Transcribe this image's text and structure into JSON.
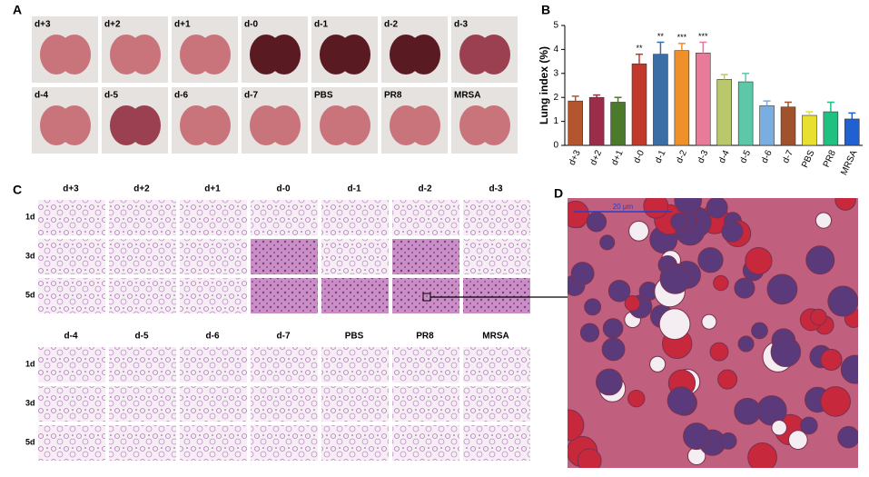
{
  "panels": {
    "a": "A",
    "b": "B",
    "c": "C",
    "d": "D"
  },
  "photos": {
    "labels": [
      "d+3",
      "d+2",
      "d+1",
      "d-0",
      "d-1",
      "d-2",
      "d-3",
      "d-4",
      "d-5",
      "d-6",
      "d-7",
      "PBS",
      "PR8",
      "MRSA"
    ]
  },
  "histology": {
    "groups": [
      [
        "d+3",
        "d+2",
        "d+1",
        "d-0",
        "d-1",
        "d-2",
        "d-3"
      ],
      [
        "d-4",
        "d-5",
        "d-6",
        "d-7",
        "PBS",
        "PR8",
        "MRSA"
      ]
    ],
    "rows": [
      "1d",
      "3d",
      "5d"
    ]
  },
  "scale_bar": "20 μm",
  "chart_data": {
    "type": "bar",
    "ylabel": "Lung index (%)",
    "categories": [
      "d+3",
      "d+2",
      "d+1",
      "d-0",
      "d-1",
      "d-2",
      "d-3",
      "d-4",
      "d-5",
      "d-6",
      "d-7",
      "PBS",
      "PR8",
      "MRSA"
    ],
    "values": [
      1.85,
      2.0,
      1.8,
      3.4,
      3.8,
      3.95,
      3.85,
      2.75,
      2.65,
      1.65,
      1.6,
      1.25,
      1.4,
      1.1
    ],
    "errors": [
      0.2,
      0.1,
      0.2,
      0.4,
      0.5,
      0.3,
      0.45,
      0.2,
      0.35,
      0.2,
      0.2,
      0.15,
      0.4,
      0.25
    ],
    "significance": [
      null,
      null,
      null,
      "**",
      "**",
      "***",
      "***",
      null,
      null,
      null,
      null,
      null,
      null,
      null
    ],
    "colors": [
      "#b5552d",
      "#9b2d4a",
      "#4a7a2a",
      "#c0392b",
      "#3a6ea5",
      "#f0902a",
      "#e87a9a",
      "#b8c86a",
      "#5dc8a8",
      "#7aaee0",
      "#a0522d",
      "#e8e030",
      "#20c080",
      "#2060d0"
    ],
    "ylim": [
      0,
      5
    ],
    "yticks": [
      0,
      1,
      2,
      3,
      4,
      5
    ]
  }
}
